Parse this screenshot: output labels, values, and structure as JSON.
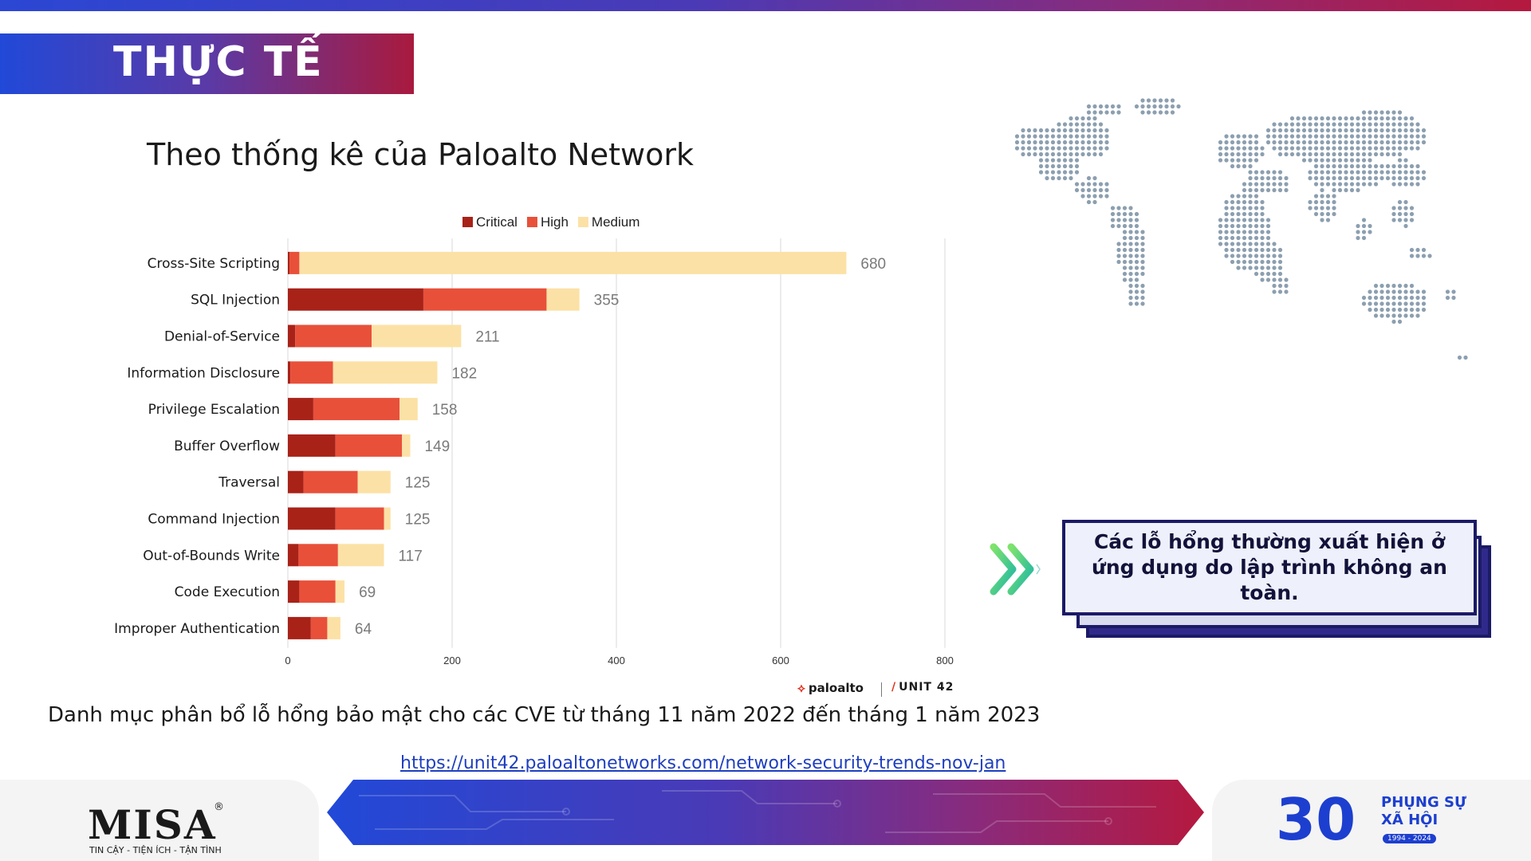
{
  "header": {
    "section_title": "THỰC TẾ"
  },
  "subtitle": "Theo thống kê của Paloalto Network",
  "chart_data": {
    "type": "bar",
    "orientation": "horizontal",
    "stacked": true,
    "categories": [
      "Cross-Site Scripting",
      "SQL Injection",
      "Denial-of-Service",
      "Information Disclosure",
      "Privilege Escalation",
      "Buffer Overflow",
      "Traversal",
      "Command Injection",
      "Out-of-Bounds Write",
      "Code Execution",
      "Improper Authentication"
    ],
    "series": [
      {
        "name": "Critical",
        "color": "#a82218",
        "values": [
          2,
          165,
          9,
          3,
          31,
          58,
          19,
          58,
          13,
          14,
          28
        ]
      },
      {
        "name": "High",
        "color": "#e8503a",
        "values": [
          12,
          150,
          93,
          52,
          105,
          81,
          66,
          59,
          48,
          44,
          20
        ]
      },
      {
        "name": "Medium",
        "color": "#fce1a6",
        "values": [
          666,
          40,
          109,
          127,
          22,
          10,
          40,
          8,
          56,
          11,
          16
        ]
      }
    ],
    "totals": [
      680,
      355,
      211,
      182,
      158,
      149,
      125,
      125,
      117,
      69,
      64
    ],
    "xticks": [
      0,
      200,
      400,
      600,
      800
    ],
    "xlim": [
      0,
      800
    ],
    "legend_position": "top",
    "grid": true
  },
  "logos": {
    "paloalto": "paloalto",
    "unit42": "UNIT 42"
  },
  "caption": "Danh mục phân bổ lỗ hổng bảo mật cho các CVE từ tháng 11 năm 2022 đến tháng 1 năm 2023",
  "source_link": "https://unit42.paloaltonetworks.com/network-security-trends-nov-jan",
  "callout": "Các lỗ hổng thường xuất hiện ở ứng dụng do lập trình không an toàn.",
  "footer": {
    "misa_name": "MISA",
    "misa_reg": "®",
    "misa_tagline": "TIN CẬY - TIỆN ÍCH - TẬN TÌNH",
    "anniversary_number": "30",
    "anniversary_line1": "PHỤNG SỰ",
    "anniversary_line2": "XÃ HỘI",
    "anniversary_years": "1994 - 2024"
  }
}
